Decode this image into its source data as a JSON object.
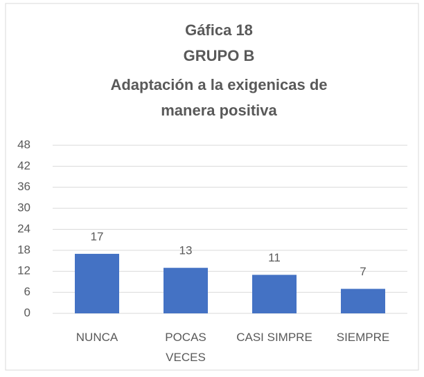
{
  "chart_data": {
    "type": "bar",
    "title": [
      "Gáfica 18",
      "GRUPO B",
      "Adaptación a la exigenicas de",
      "manera positiva"
    ],
    "categories": [
      "NUNCA",
      "POCAS VECES",
      "CASI SIMPRE",
      "SIEMPRE"
    ],
    "values": [
      17,
      13,
      11,
      7
    ],
    "color": "#4472c4",
    "ylim": [
      0,
      48
    ],
    "yticks": [
      0,
      6,
      12,
      18,
      24,
      30,
      36,
      42,
      48
    ],
    "grid": true,
    "data_labels": true
  }
}
